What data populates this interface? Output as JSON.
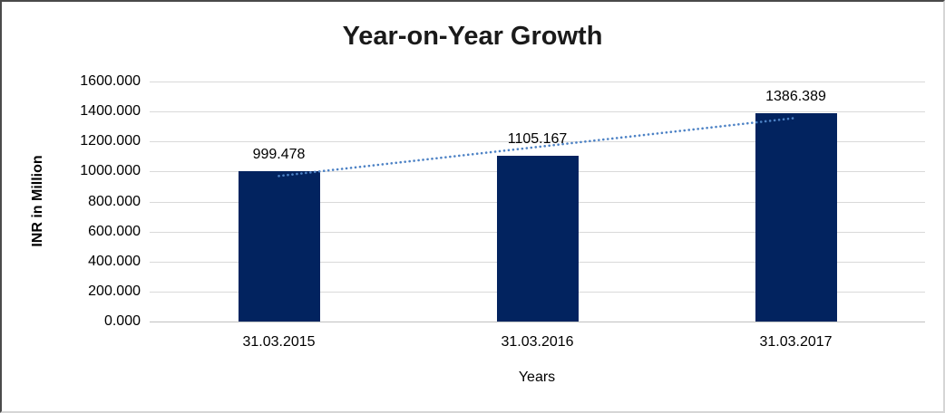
{
  "chart_data": {
    "type": "bar",
    "title": "Year-on-Year Growth",
    "xlabel": "Years",
    "ylabel": "INR in Million",
    "categories": [
      "31.03.2015",
      "31.03.2016",
      "31.03.2017"
    ],
    "values": [
      999.478,
      1105.167,
      1386.389
    ],
    "data_labels": [
      "999.478",
      "1105.167",
      "1386.389"
    ],
    "ylim": [
      0,
      1600
    ],
    "ytick_interval": 200,
    "ytick_labels": [
      "0.000",
      "200.000",
      "400.000",
      "600.000",
      "800.000",
      "1000.000",
      "1200.000",
      "1400.000",
      "1600.000"
    ],
    "grid": "horizontal",
    "legend": "none",
    "bar_color": "#02235f",
    "gridline_color": "#d9d9d9",
    "trendline": {
      "type": "linear",
      "style": "dotted",
      "color": "#4d82c5"
    }
  }
}
